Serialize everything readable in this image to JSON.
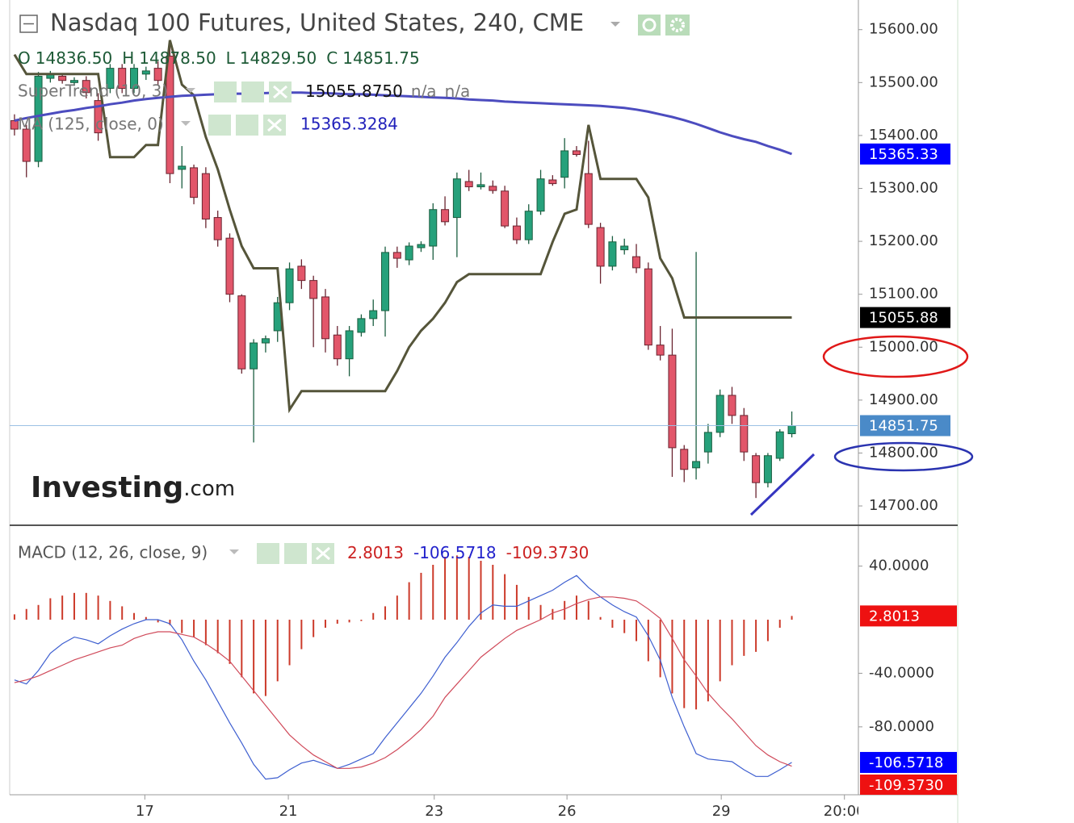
{
  "chart_data": [
    {
      "type": "candlestick",
      "title": "Nasdaq 100 Futures, United States, 240, CME",
      "ohlc_header": [
        {
          "label": "O",
          "value": "14836.50"
        },
        {
          "label": "H",
          "value": "14878.50"
        },
        {
          "label": "L",
          "value": "14829.50"
        },
        {
          "label": "C",
          "value": "14851.75"
        }
      ],
      "last_price_label": "14851.75",
      "up_color": "#26a17b",
      "down_color": "#e2566a",
      "open": [
        15428,
        15412,
        15351,
        15508,
        15512,
        15500,
        15504,
        15466,
        15489,
        15527,
        15489,
        15516,
        15527,
        15550,
        15336,
        15339,
        15328,
        15245,
        15206,
        15097,
        14959,
        15008,
        15031,
        15084,
        15153,
        15126,
        15095,
        15023,
        14978,
        15028,
        15054,
        15069,
        15179,
        15165,
        15188,
        15191,
        15260,
        15245,
        15313,
        15303,
        15304,
        15295,
        15229,
        15203,
        15257,
        15316,
        15321,
        15371,
        15328,
        15226,
        15153,
        15184,
        15171,
        15148,
        15004,
        14985,
        14807,
        14772,
        14802,
        14839,
        14909,
        14871,
        14795,
        14744,
        14790,
        14836.5
      ],
      "high": [
        15440,
        15420,
        15520,
        15522,
        15518,
        15510,
        15512,
        15480,
        15535,
        15535,
        15535,
        15530,
        15540,
        15580,
        15380,
        15345,
        15340,
        15258,
        15215,
        15100,
        15015,
        15022,
        15095,
        15160,
        15166,
        15135,
        15110,
        15040,
        15040,
        15062,
        15090,
        15190,
        15190,
        15198,
        15200,
        15272,
        15285,
        15330,
        15335,
        15330,
        15315,
        15305,
        15245,
        15270,
        15335,
        15325,
        15395,
        15380,
        15390,
        15235,
        15210,
        15205,
        15195,
        15160,
        15040,
        15035,
        14815,
        15180,
        14855,
        14920,
        14925,
        14885,
        14800,
        14800,
        14845,
        14878.5
      ],
      "low": [
        15400,
        15321,
        15340,
        15500,
        15498,
        15494,
        15470,
        15390,
        15480,
        15480,
        15480,
        15505,
        15495,
        15310,
        15300,
        15270,
        15225,
        15190,
        15085,
        14950,
        14820,
        14990,
        15010,
        15070,
        15110,
        15000,
        14990,
        14965,
        14945,
        15020,
        15040,
        15020,
        15150,
        15155,
        15180,
        15165,
        15230,
        15170,
        15295,
        15298,
        15290,
        15225,
        15195,
        15195,
        15250,
        15305,
        15300,
        15360,
        15225,
        15120,
        15145,
        15175,
        15140,
        14995,
        14975,
        14755,
        14745,
        14750,
        14780,
        14830,
        14855,
        14785,
        14715,
        14735,
        14785,
        14829.5
      ],
      "close": [
        15412,
        15351,
        15512,
        15515,
        15504,
        15504,
        15481,
        15405,
        15527,
        15489,
        15527,
        15522,
        15504,
        15328,
        15342,
        15283,
        15242,
        15203,
        15100,
        14959,
        15008,
        15016,
        15084,
        15148,
        15126,
        15092,
        15016,
        14978,
        15031,
        15054,
        15069,
        15179,
        15168,
        15191,
        15194,
        15260,
        15237,
        15318,
        15303,
        15307,
        15296,
        15229,
        15203,
        15257,
        15318,
        15309,
        15371,
        15364,
        15232,
        15153,
        15199,
        15191,
        15150,
        15004,
        14985,
        14810,
        14769,
        14784,
        14839,
        14909,
        14871,
        14802,
        14744,
        14795,
        14840,
        14851.75
      ],
      "series": [
        {
          "name": "SuperTrend (10, 3)",
          "color": "#55553a",
          "legend_value": "15055.8750",
          "legend_extra": [
            "n/a",
            "n/a"
          ],
          "badge": "15055.88",
          "badge_color": "#000000",
          "values": [
            15553,
            15516,
            15516,
            15516,
            15516,
            15516,
            15516,
            15516,
            15359,
            15359,
            15359,
            15382,
            15382,
            15580,
            15496,
            15476,
            15397,
            15336,
            15260,
            15191,
            15149,
            15149,
            15149,
            14882,
            14917,
            14917,
            14917,
            14917,
            14917,
            14917,
            14917,
            14917,
            14955,
            15000,
            15031,
            15054,
            15084,
            15123,
            15138,
            15138,
            15138,
            15138,
            15138,
            15138,
            15138,
            15199,
            15252,
            15260,
            15420,
            15318,
            15318,
            15318,
            15318,
            15283,
            15168,
            15130,
            15056,
            15056,
            15056,
            15056,
            15056,
            15056,
            15056,
            15056,
            15056,
            15056
          ]
        },
        {
          "name": "MA (125, close, 0)",
          "color": "#4c4cbf",
          "legend_value": "15365.3284",
          "badge": "15365.33",
          "badge_color": "#0000ff",
          "values": [
            15428,
            15433,
            15437,
            15441,
            15445,
            15448,
            15452,
            15455,
            15459,
            15462,
            15466,
            15469,
            15471,
            15473,
            15475,
            15476,
            15477,
            15478,
            15479,
            15479,
            15480,
            15480,
            15481,
            15481,
            15481,
            15480,
            15480,
            15479,
            15478,
            15478,
            15477,
            15476,
            15475,
            15474,
            15473,
            15472,
            15471,
            15470,
            15468,
            15467,
            15466,
            15464,
            15463,
            15462,
            15461,
            15460,
            15459,
            15458,
            15457,
            15456,
            15454,
            15452,
            15449,
            15445,
            15440,
            15435,
            15429,
            15422,
            15414,
            15406,
            15399,
            15393,
            15388,
            15380,
            15373,
            15365
          ]
        }
      ],
      "xlim": [
        -0.4,
        70.5
      ],
      "xticks": [
        {
          "value": 10.9,
          "label": "17"
        },
        {
          "value": 22.9,
          "label": "21"
        },
        {
          "value": 35.1,
          "label": "23"
        },
        {
          "value": 46.2,
          "label": "26"
        },
        {
          "value": 59.1,
          "label": "29"
        },
        {
          "value": 69.4,
          "label": "20:00"
        }
      ],
      "ylim": [
        14665,
        15656
      ],
      "yticks": [
        {
          "value": 14700,
          "label": "14700.00"
        },
        {
          "value": 14800,
          "label": "14800.00"
        },
        {
          "value": 14900,
          "label": "14900.00"
        },
        {
          "value": 15000,
          "label": "15000.00"
        },
        {
          "value": 15100,
          "label": "15100.00"
        },
        {
          "value": 15200,
          "label": "15200.00"
        },
        {
          "value": 15300,
          "label": "15300.00"
        },
        {
          "value": 15400,
          "label": "15400.00"
        },
        {
          "value": 15500,
          "label": "15500.00"
        },
        {
          "value": 15600,
          "label": "15600.00"
        }
      ],
      "grid": false
    },
    {
      "type": "macd",
      "title": "MACD (12, 26, close, 9)",
      "series": [
        {
          "style": "bar",
          "color": "#cc3a2a",
          "legend_value": "2.8013",
          "badge": "2.8013",
          "badge_color": "#ee1111",
          "values": [
            4,
            8,
            11,
            16,
            18,
            20,
            20,
            18,
            14,
            10,
            5,
            2,
            -2,
            -4,
            -10,
            -13,
            -19,
            -25,
            -33,
            -43,
            -55,
            -57,
            -46,
            -34,
            -22,
            -13,
            -6,
            -3,
            -2,
            -1,
            5,
            10,
            18,
            28,
            35,
            41,
            47,
            48,
            47,
            44,
            41,
            34,
            26,
            17,
            11,
            8,
            14,
            18,
            14,
            2,
            -6,
            -10,
            -16,
            -31,
            -43,
            -55,
            -66,
            -67,
            -61,
            -46,
            -34,
            -27,
            -24,
            -16,
            -6,
            2.8013
          ]
        },
        {
          "style": "line",
          "color": "#3e5fd0",
          "legend_value": "-106.5718",
          "badge": "-106.5718",
          "badge_color": "#0000ff",
          "values": [
            -45,
            -48,
            -38,
            -25,
            -18,
            -13,
            -15,
            -18,
            -12,
            -7,
            -3,
            0,
            0,
            -3,
            -15,
            -31,
            -45,
            -61,
            -77,
            -92,
            -108,
            -119,
            -118,
            -112,
            -107,
            -105,
            -108,
            -111,
            -108,
            -104,
            -100,
            -88,
            -77,
            -66,
            -55,
            -42,
            -28,
            -17,
            -5,
            5,
            11,
            10,
            10,
            14,
            18,
            22,
            28,
            33,
            24,
            17,
            11,
            6,
            2,
            -12,
            -30,
            -58,
            -80,
            -100,
            -104,
            -105,
            -106,
            -112,
            -117,
            -117,
            -112,
            -106.5718
          ]
        },
        {
          "style": "line",
          "color": "#d04a5a",
          "legend_value": "-109.3730",
          "badge": "-109.3730",
          "badge_color": "#ee1111",
          "values": [
            -47,
            -45,
            -42,
            -38,
            -34,
            -30,
            -27,
            -24,
            -21,
            -19,
            -14,
            -11,
            -9,
            -9,
            -11,
            -13,
            -18,
            -24,
            -31,
            -42,
            -53,
            -64,
            -75,
            -86,
            -94,
            -101,
            -106,
            -111,
            -111,
            -110,
            -107,
            -103,
            -97,
            -90,
            -82,
            -72,
            -58,
            -48,
            -38,
            -28,
            -21,
            -14,
            -8,
            -4,
            0,
            5,
            8,
            12,
            15,
            17,
            17,
            16,
            14,
            8,
            1,
            -14,
            -30,
            -42,
            -55,
            -65,
            -74,
            -84,
            -94,
            -101,
            -106,
            -109.373
          ]
        }
      ],
      "ylim": [
        -130.7,
        69.9
      ],
      "yticks": [
        {
          "value": -80,
          "label": "-80.0000"
        },
        {
          "value": -40,
          "label": "-40.0000"
        },
        {
          "value": 40,
          "label": "40.0000"
        }
      ]
    }
  ],
  "logo": {
    "name": "Investing",
    "suffix": ".com"
  }
}
